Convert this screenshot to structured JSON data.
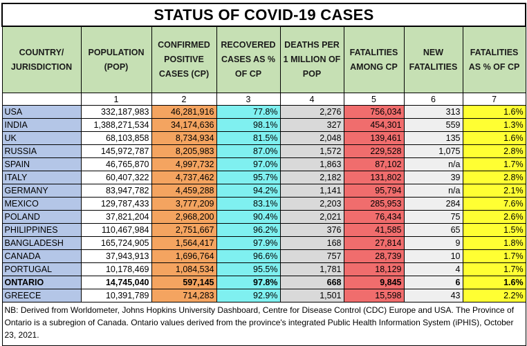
{
  "title": "STATUS OF COVID-19 CASES",
  "headers": [
    "COUNTRY/ JURISDICTION",
    "POPULATION (POP)",
    "CONFIRMED POSITIVE CASES (CP)",
    "RECOVERED CASES AS % OF CP",
    "DEATHS PER 1 MILLION OF POP",
    "FATALITIES AMONG CP",
    "NEW FATALITIES",
    "FATALITIES AS % OF CP"
  ],
  "column_numbers": [
    "",
    "1",
    "2",
    "3",
    "4",
    "5",
    "6",
    "7"
  ],
  "rows": [
    {
      "cells": [
        "USA",
        "332,187,983",
        "46,281,916",
        "77.8%",
        "2,276",
        "756,034",
        "313",
        "1.6%"
      ]
    },
    {
      "cells": [
        "INDIA",
        "1,388,271,534",
        "34,174,636",
        "98.1%",
        "327",
        "454,301",
        "559",
        "1.3%"
      ]
    },
    {
      "cells": [
        "UK",
        "68,103,858",
        "8,734,934",
        "81.5%",
        "2,048",
        "139,461",
        "135",
        "1.6%"
      ]
    },
    {
      "cells": [
        "RUSSIA",
        "145,972,787",
        "8,205,983",
        "87.0%",
        "1,572",
        "229,528",
        "1,075",
        "2.8%"
      ]
    },
    {
      "cells": [
        "SPAIN",
        "46,765,870",
        "4,997,732",
        "97.0%",
        "1,863",
        "87,102",
        "n/a",
        "1.7%"
      ]
    },
    {
      "cells": [
        "ITALY",
        "60,407,322",
        "4,737,462",
        "95.7%",
        "2,182",
        "131,802",
        "39",
        "2.8%"
      ]
    },
    {
      "cells": [
        "GERMANY",
        "83,947,782",
        "4,459,288",
        "94.2%",
        "1,141",
        "95,794",
        "n/a",
        "2.1%"
      ]
    },
    {
      "cells": [
        "MEXICO",
        "129,787,433",
        "3,777,209",
        "83.1%",
        "2,203",
        "285,953",
        "284",
        "7.6%"
      ]
    },
    {
      "cells": [
        "POLAND",
        "37,821,204",
        "2,968,200",
        "90.4%",
        "2,021",
        "76,434",
        "75",
        "2.6%"
      ]
    },
    {
      "cells": [
        "PHILIPPINES",
        "110,467,984",
        "2,751,667",
        "96.2%",
        "376",
        "41,585",
        "65",
        "1.5%"
      ]
    },
    {
      "cells": [
        "BANGLADESH",
        "165,724,905",
        "1,564,417",
        "97.9%",
        "168",
        "27,814",
        "9",
        "1.8%"
      ]
    },
    {
      "cells": [
        "CANADA",
        "37,943,913",
        "1,696,764",
        "96.6%",
        "757",
        "28,739",
        "10",
        "1.7%"
      ]
    },
    {
      "cells": [
        "PORTUGAL",
        "10,178,469",
        "1,084,534",
        "95.5%",
        "1,781",
        "18,129",
        "4",
        "1.7%"
      ]
    },
    {
      "cells": [
        "ONTARIO",
        "14,745,040",
        "597,145",
        "97.8%",
        "668",
        "9,845",
        "6",
        "1.6%"
      ],
      "bold": true
    },
    {
      "cells": [
        "GREECE",
        "10,391,789",
        "714,283",
        "92.9%",
        "1,501",
        "15,598",
        "43",
        "2.2%"
      ]
    }
  ],
  "note": "NB: Derived from Worldometer, Johns Hopkins University Dashboard, Centre for Disease Control (CDC) Europe and USA. The Province of Ontario is a subregion of Canada. Ontario values derived from the province's integrated Public Health Information System (iPHIS), October 23, 2021."
}
